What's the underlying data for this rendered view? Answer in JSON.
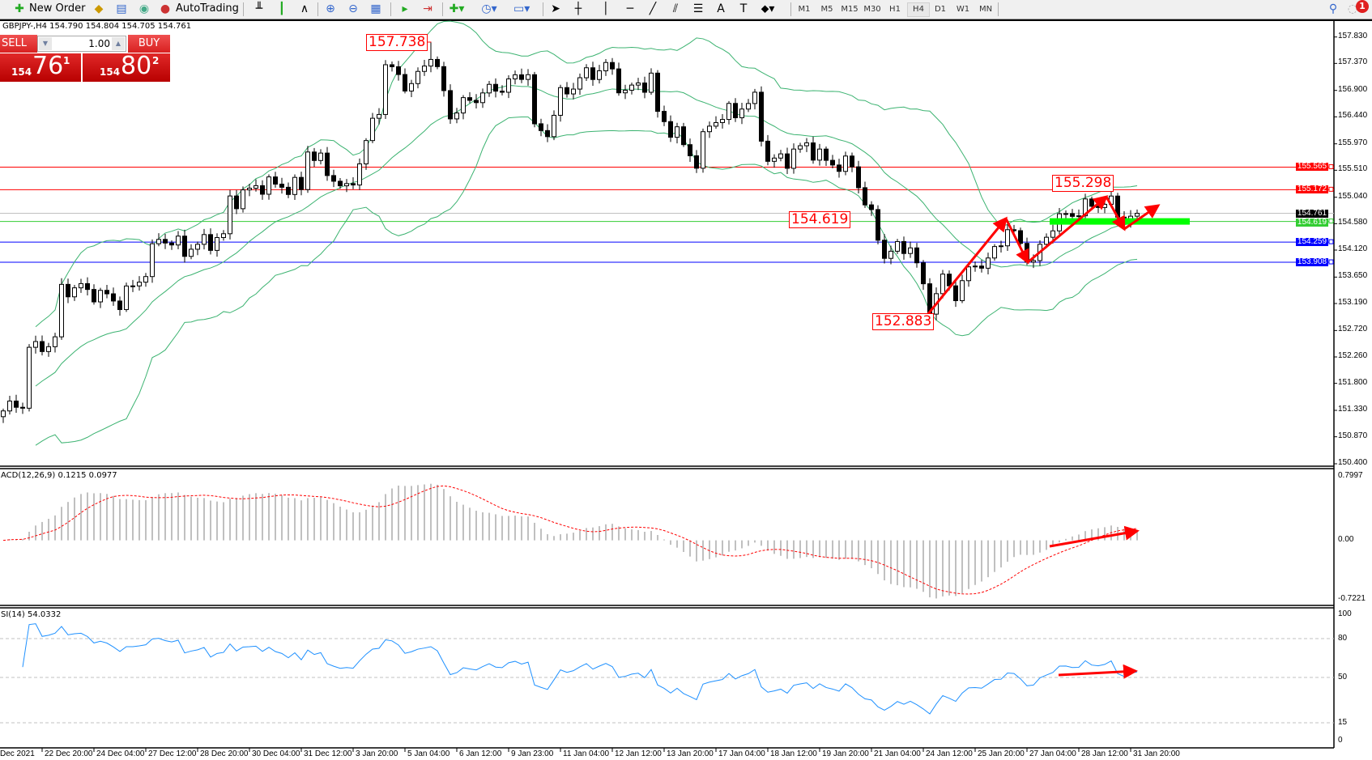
{
  "toolbar": {
    "new_order_label": "New Order",
    "autotrading_label": "AutoTrading",
    "timeframes": [
      "M1",
      "M5",
      "M15",
      "M30",
      "H1",
      "H4",
      "D1",
      "W1",
      "MN"
    ],
    "selected_timeframe": "H4",
    "notification_count": "1"
  },
  "chart_header": "GBPJPY-,H4  154.790 154.804 154.705 154.761",
  "one_click": {
    "sell_label": "SELL",
    "buy_label": "BUY",
    "lots": "1.00",
    "sell_prefix": "154",
    "sell_big": "76",
    "sell_sup": "1",
    "buy_prefix": "154",
    "buy_big": "80",
    "buy_sup": "2"
  },
  "colors": {
    "bull_candle": "#ffffff",
    "bear_candle": "#000000",
    "bollinger": "#3cb371",
    "resistance": "#ff0000",
    "support": "#0000ff",
    "pivot": "#32cd32",
    "bid_line": "#c0c0c0",
    "macd_hist": "#c0c0c0",
    "macd_signal": "#ff0000",
    "rsi": "#1e90ff",
    "annotation": "#ff0000"
  },
  "chart_data": [
    {
      "type": "candlestick",
      "symbol": "GBPJPY-",
      "timeframe": "H4",
      "ylim": [
        150.4,
        157.83
      ],
      "y_ticks": [
        "157.830",
        "157.370",
        "156.900",
        "156.440",
        "155.970",
        "155.510",
        "155.040",
        "154.580",
        "154.120",
        "153.650",
        "153.190",
        "152.720",
        "152.260",
        "151.800",
        "151.330",
        "150.870",
        "150.400"
      ],
      "x_tick_labels": [
        "Dec 2021",
        "22 Dec 20:00",
        "24 Dec 04:00",
        "27 Dec 12:00",
        "28 Dec 20:00",
        "30 Dec 04:00",
        "31 Dec 12:00",
        "3 Jan 20:00",
        "5 Jan 04:00",
        "6 Jan 12:00",
        "9 Jan 23:00",
        "11 Jan 04:00",
        "12 Jan 12:00",
        "13 Jan 20:00",
        "17 Jan 04:00",
        "18 Jan 12:00",
        "19 Jan 20:00",
        "21 Jan 04:00",
        "24 Jan 12:00",
        "25 Jan 20:00",
        "27 Jan 04:00",
        "28 Jan 12:00",
        "31 Jan 20:00"
      ],
      "bars": 176,
      "close_path": [
        [
          0,
          151.32
        ],
        [
          3,
          151.47
        ],
        [
          4,
          152.38
        ],
        [
          8,
          152.53
        ],
        [
          9,
          153.45
        ],
        [
          12,
          153.45
        ],
        [
          18,
          153.22
        ],
        [
          22,
          153.75
        ],
        [
          24,
          154.36
        ],
        [
          28,
          154.13
        ],
        [
          34,
          154.36
        ],
        [
          35,
          154.97
        ],
        [
          40,
          155.27
        ],
        [
          46,
          155.2
        ],
        [
          47,
          155.88
        ],
        [
          53,
          155.12
        ],
        [
          55,
          155.65
        ],
        [
          58,
          156.64
        ],
        [
          59,
          157.33
        ],
        [
          63,
          156.95
        ],
        [
          66,
          157.56
        ],
        [
          69,
          156.49
        ],
        [
          73,
          156.8
        ],
        [
          78,
          157.02
        ],
        [
          81,
          157.25
        ],
        [
          82,
          156.19
        ],
        [
          84,
          156.19
        ],
        [
          86,
          156.8
        ],
        [
          89,
          157.1
        ],
        [
          93,
          157.33
        ],
        [
          96,
          156.87
        ],
        [
          100,
          157.1
        ],
        [
          101,
          156.49
        ],
        [
          104,
          156.11
        ],
        [
          107,
          155.65
        ],
        [
          109,
          156.34
        ],
        [
          112,
          156.49
        ],
        [
          116,
          156.72
        ],
        [
          118,
          155.65
        ],
        [
          121,
          155.73
        ],
        [
          124,
          155.96
        ],
        [
          127,
          155.65
        ],
        [
          131,
          155.58
        ],
        [
          134,
          154.66
        ],
        [
          136,
          154.05
        ],
        [
          140,
          154.21
        ],
        [
          142,
          153.45
        ],
        [
          143,
          153.14
        ],
        [
          145,
          153.6
        ],
        [
          147,
          153.37
        ],
        [
          150,
          153.9
        ],
        [
          152,
          153.9
        ],
        [
          155,
          154.51
        ],
        [
          158,
          154.05
        ],
        [
          159,
          153.9
        ],
        [
          162,
          154.59
        ],
        [
          166,
          154.82
        ],
        [
          170,
          154.97
        ],
        [
          171,
          154.89
        ],
        [
          173,
          154.66
        ],
        [
          175,
          154.761
        ]
      ],
      "price_labels": [
        {
          "text": "157.738",
          "price": 157.738,
          "bar": 66
        },
        {
          "text": "152.883",
          "price": 152.883,
          "bar": 143
        },
        {
          "text": "155.298",
          "price": 155.298,
          "bar": 171
        },
        {
          "text": "154.619",
          "price": 154.619,
          "bar": null
        }
      ],
      "horizontal_lines": [
        {
          "price": 155.565,
          "label": "155.565",
          "color": "#ff0000"
        },
        {
          "price": 155.172,
          "label": "155.172",
          "color": "#ff0000"
        },
        {
          "price": 154.761,
          "label": "154.761",
          "color": "#000000",
          "line": "#c0c0c0"
        },
        {
          "price": 154.619,
          "label": "154.619",
          "color": "#32cd32"
        },
        {
          "price": 154.259,
          "label": "154.259",
          "color": "#0000ff"
        },
        {
          "price": 153.908,
          "label": "153.908",
          "color": "#0000ff"
        }
      ],
      "overlay": "Bollinger Bands"
    },
    {
      "type": "bar+line",
      "label": "ACD(12,26,9) 0.1215 0.0977",
      "ylim": [
        -0.7221,
        0.7997
      ],
      "y_ticks": [
        "0.7997",
        "0.00",
        "-0.7221"
      ]
    },
    {
      "type": "line",
      "label": "SI(14) 54.0332",
      "ylim": [
        0,
        100
      ],
      "y_ticks": [
        "100",
        "80",
        "50",
        "15",
        "0"
      ],
      "levels": [
        80,
        50,
        15
      ]
    }
  ]
}
